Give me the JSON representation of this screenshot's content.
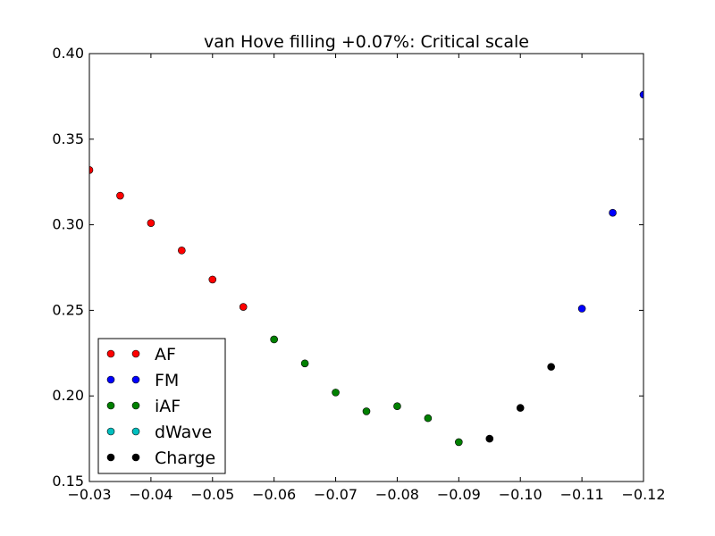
{
  "chart_data": {
    "type": "scatter",
    "title": "van Hove filling +0.07%: Critical scale",
    "xlabel": "",
    "ylabel": "",
    "xlim": [
      -0.03,
      -0.12
    ],
    "ylim": [
      0.15,
      0.4
    ],
    "x_ticks": [
      "−0.03",
      "−0.04",
      "−0.05",
      "−0.06",
      "−0.07",
      "−0.08",
      "−0.09",
      "−0.10",
      "−0.11",
      "−0.12"
    ],
    "x_tick_values": [
      -0.03,
      -0.04,
      -0.05,
      -0.06,
      -0.07,
      -0.08,
      -0.09,
      -0.1,
      -0.11,
      -0.12
    ],
    "y_ticks": [
      "0.15",
      "0.20",
      "0.25",
      "0.30",
      "0.35",
      "0.40"
    ],
    "y_tick_values": [
      0.15,
      0.2,
      0.25,
      0.3,
      0.35,
      0.4
    ],
    "legend_position": "lower-left",
    "grid": false,
    "series": [
      {
        "name": "AF",
        "color": "#ff0000",
        "points": [
          [
            -0.03,
            0.332
          ],
          [
            -0.035,
            0.317
          ],
          [
            -0.04,
            0.301
          ],
          [
            -0.045,
            0.285
          ],
          [
            -0.05,
            0.268
          ],
          [
            -0.055,
            0.252
          ]
        ]
      },
      {
        "name": "FM",
        "color": "#0000ff",
        "points": [
          [
            -0.11,
            0.251
          ],
          [
            -0.115,
            0.307
          ],
          [
            -0.12,
            0.376
          ]
        ]
      },
      {
        "name": "iAF",
        "color": "#008000",
        "points": [
          [
            -0.06,
            0.233
          ],
          [
            -0.065,
            0.219
          ],
          [
            -0.07,
            0.202
          ],
          [
            -0.075,
            0.191
          ],
          [
            -0.08,
            0.194
          ],
          [
            -0.085,
            0.187
          ],
          [
            -0.09,
            0.173
          ]
        ]
      },
      {
        "name": "dWave",
        "color": "#00bfbf",
        "points": []
      },
      {
        "name": "Charge",
        "color": "#000000",
        "points": [
          [
            -0.095,
            0.175
          ],
          [
            -0.1,
            0.193
          ],
          [
            -0.105,
            0.217
          ]
        ]
      }
    ]
  }
}
